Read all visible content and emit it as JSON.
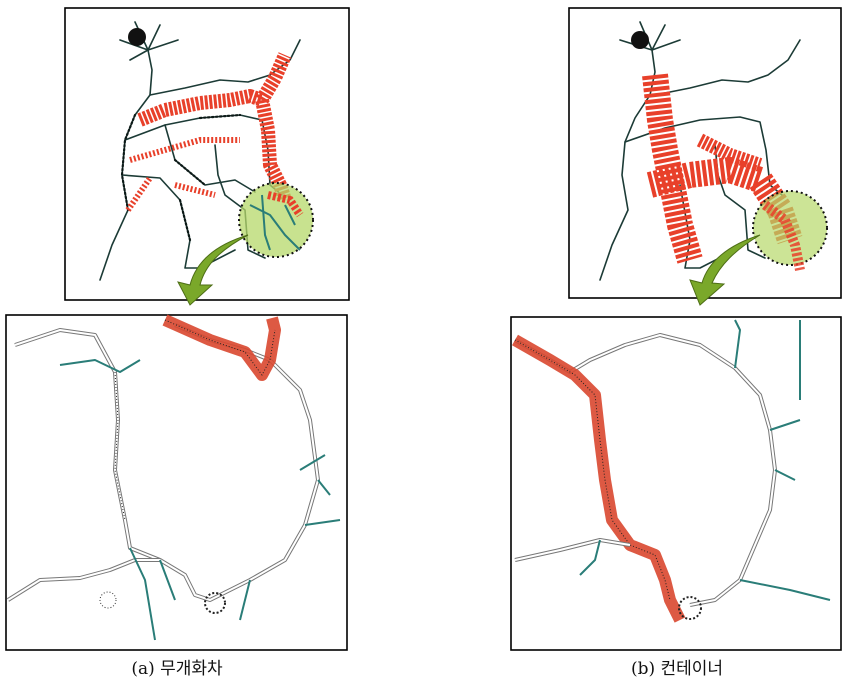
{
  "captions": {
    "a": "(a) 무개화차",
    "b": "(b) 컨테이너"
  }
}
